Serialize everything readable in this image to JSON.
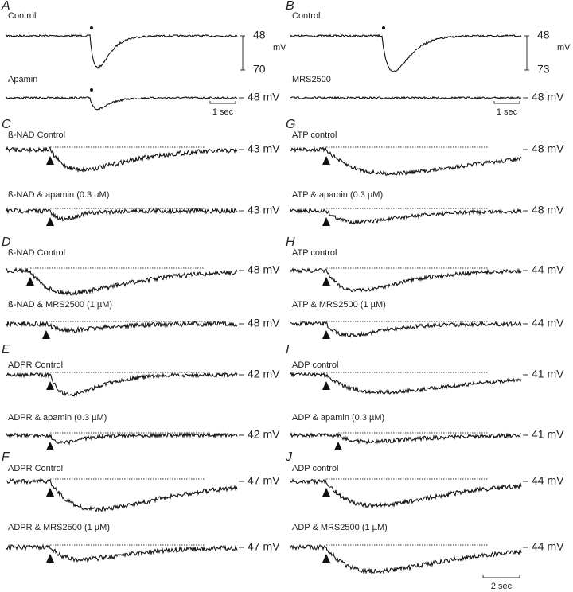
{
  "panels": [
    {
      "letter": "A",
      "traces": [
        {
          "label": "Control"
        },
        {
          "label": "Apamin",
          "potential": "48 mV"
        }
      ],
      "scale": {
        "top": "48",
        "bottom": "70",
        "unit": "mV"
      },
      "time_bar": "1 sec"
    },
    {
      "letter": "B",
      "traces": [
        {
          "label": "Control"
        },
        {
          "label": "MRS2500",
          "potential": "48 mV"
        }
      ],
      "scale": {
        "top": "48",
        "bottom": "73",
        "unit": "mV"
      },
      "time_bar": "1 sec"
    },
    {
      "letter": "C",
      "traces": [
        {
          "label": "ß-NAD Control",
          "potential": "43 mV"
        },
        {
          "label": "ß-NAD & apamin (0.3 µM)",
          "potential": "43 mV"
        }
      ]
    },
    {
      "letter": "G",
      "traces": [
        {
          "label": "ATP control",
          "potential": "48 mV"
        },
        {
          "label": "ATP & apamin (0.3 µM)",
          "potential": "48 mV"
        }
      ]
    },
    {
      "letter": "D",
      "traces": [
        {
          "label": "ß-NAD Control",
          "potential": "48 mV"
        },
        {
          "label": "ß-NAD & MRS2500 (1 µM)",
          "potential": "48 mV"
        }
      ]
    },
    {
      "letter": "H",
      "traces": [
        {
          "label": "ATP control",
          "potential": "44 mV"
        },
        {
          "label": "ATP & MRS2500 (1 µM)",
          "potential": "44 mV"
        }
      ]
    },
    {
      "letter": "E",
      "traces": [
        {
          "label": "ADPR Control",
          "potential": "42 mV"
        },
        {
          "label": "ADPR & apamin (0.3 µM)",
          "potential": "42 mV"
        }
      ]
    },
    {
      "letter": "I",
      "traces": [
        {
          "label": "ADP control",
          "potential": "41 mV"
        },
        {
          "label": "ADP & apamin (0.3 µM)",
          "potential": "41 mV"
        }
      ]
    },
    {
      "letter": "F",
      "traces": [
        {
          "label": "ADPR Control",
          "potential": "47 mV"
        },
        {
          "label": "ADPR & MRS2500 (1 µM)",
          "potential": "47 mV"
        }
      ]
    },
    {
      "letter": "J",
      "traces": [
        {
          "label": "ADP control",
          "potential": "44 mV"
        },
        {
          "label": "ADP & MRS2500 (1 µM)",
          "potential": "44 mV"
        }
      ],
      "time_bar": "2 sec"
    }
  ]
}
